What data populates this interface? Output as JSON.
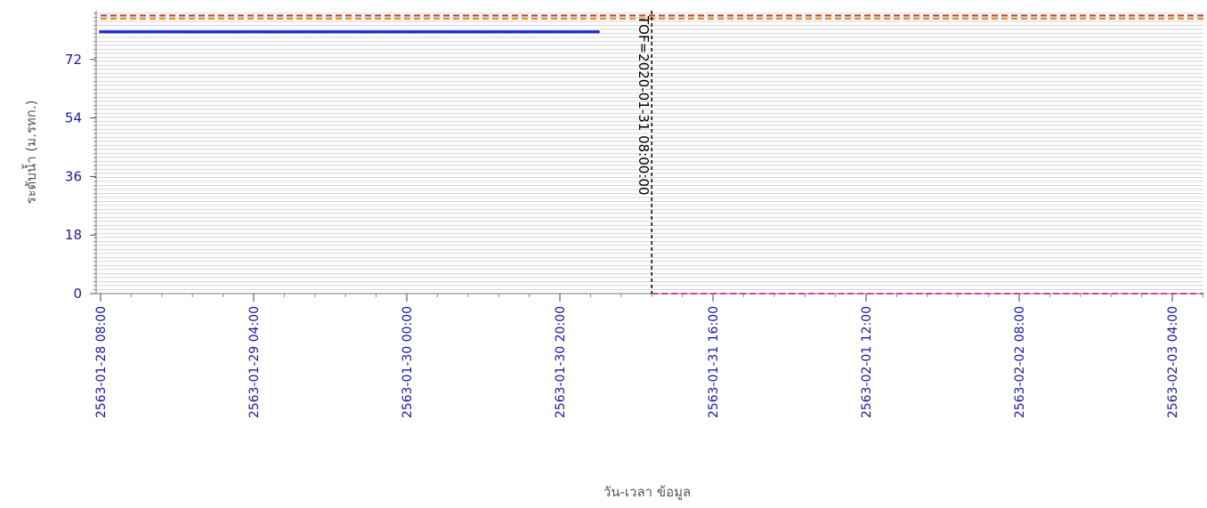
{
  "chart_data": {
    "type": "line",
    "xlabel": "วัน-เวลา ข้อมูล",
    "ylabel": "ระดับน้ำ (ม.รทก.)",
    "ylim": [
      0,
      87
    ],
    "yticks": [
      0,
      18,
      36,
      54,
      72
    ],
    "xlim": [
      "2563-01-28 08:00",
      "2563-02-03 10:00"
    ],
    "xticks": [
      "2563-01-28 08:00",
      "2563-01-29 04:00",
      "2563-01-30 00:00",
      "2563-01-30 20:00",
      "2563-01-31 16:00",
      "2563-02-01 12:00",
      "2563-02-02 08:00",
      "2563-02-03 04:00"
    ],
    "grid": true,
    "series": [
      {
        "color": "#1f2bd8",
        "style": "solid-dotted",
        "x": [
          "2563-01-28 08:00",
          "2563-01-31 01:00"
        ],
        "y": [
          80.5,
          80.5
        ]
      },
      {
        "color": "#c0392b",
        "style": "dashed-horizontal",
        "x": [
          "2563-01-28 08:00",
          "2563-02-03 10:00"
        ],
        "y": [
          85.5,
          85.5
        ]
      },
      {
        "color": "#e08a1e",
        "style": "dashed-horizontal",
        "x": [
          "2563-01-28 08:00",
          "2563-02-03 10:00"
        ],
        "y": [
          84.5,
          84.5
        ]
      },
      {
        "color": "#cc44aa",
        "style": "dashed-horizontal",
        "x": [
          "2563-01-31 08:00",
          "2563-02-03 10:00"
        ],
        "y": [
          0,
          0
        ]
      }
    ],
    "markers": [
      {
        "x": "2563-01-31 08:00",
        "label": "TOF=2020-01-31 08:00:00",
        "color": "#000000"
      }
    ]
  }
}
